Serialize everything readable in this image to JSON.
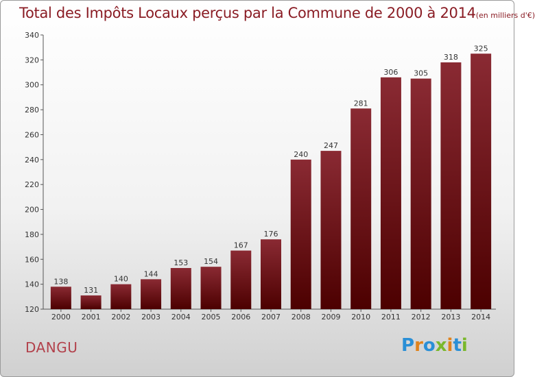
{
  "title": {
    "main": "Total des Impôts Locaux perçus par la Commune de 2000 à 2014",
    "sub": "(en milliers d'€)"
  },
  "commune": "DANGU",
  "logo": {
    "text": "Proxiti",
    "letters": [
      "P",
      "r",
      "o",
      "x",
      "i",
      "t",
      "i"
    ],
    "colors": [
      "#2a8fd6",
      "#e0831c",
      "#2a8fd6",
      "#7ab82c",
      "#e0831c",
      "#2a8fd6",
      "#7ab82c"
    ]
  },
  "colors": {
    "bar_top": "#8a2a33",
    "bar_bottom": "#4c0000",
    "title": "#8a1c24",
    "commune": "#b2414b"
  },
  "chart_data": {
    "type": "bar",
    "title": "Total des Impôts Locaux perçus par la Commune de 2000 à 2014 (en milliers d'€)",
    "xlabel": "",
    "ylabel": "",
    "categories": [
      "2000",
      "2001",
      "2002",
      "2003",
      "2004",
      "2005",
      "2006",
      "2007",
      "2008",
      "2009",
      "2010",
      "2011",
      "2012",
      "2013",
      "2014"
    ],
    "values": [
      138,
      131,
      140,
      144,
      153,
      154,
      167,
      176,
      240,
      247,
      281,
      306,
      305,
      318,
      325
    ],
    "ylim": [
      120,
      340
    ],
    "yticks": [
      120,
      140,
      160,
      180,
      200,
      220,
      240,
      260,
      280,
      300,
      320,
      340
    ],
    "grid": false,
    "data_labels": true
  }
}
